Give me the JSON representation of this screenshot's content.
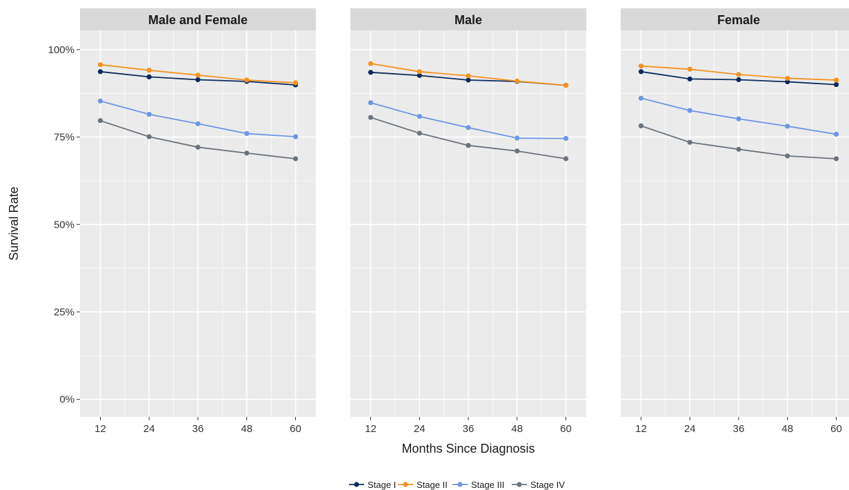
{
  "chart_data": {
    "type": "line",
    "facet_layout": "3 panels in one row",
    "x": [
      12,
      24,
      36,
      48,
      60
    ],
    "xlabel": "Months Since Diagnosis",
    "ylabel": "Survival Rate",
    "ylim": [
      0,
      1.05
    ],
    "y_ticks": [
      0,
      0.25,
      0.5,
      0.75,
      1.0
    ],
    "y_tick_labels": [
      "0%",
      "25%",
      "50%",
      "75%",
      "100%"
    ],
    "grid": true,
    "legend_position": "bottom",
    "series_colors": {
      "Stage I": "#0b2a5b",
      "Stage II": "#f39320",
      "Stage III": "#6e95e6",
      "Stage IV": "#6b737c"
    },
    "legend": [
      "Stage I",
      "Stage II",
      "Stage III",
      "Stage IV"
    ],
    "panels": [
      {
        "title": "Male and Female",
        "series": [
          {
            "name": "Stage I",
            "values": [
              0.937,
              0.922,
              0.914,
              0.909,
              0.899
            ]
          },
          {
            "name": "Stage II",
            "values": [
              0.957,
              0.941,
              0.927,
              0.913,
              0.905
            ]
          },
          {
            "name": "Stage III",
            "values": [
              0.853,
              0.815,
              0.788,
              0.76,
              0.751
            ]
          },
          {
            "name": "Stage IV",
            "values": [
              0.797,
              0.751,
              0.721,
              0.704,
              0.688
            ]
          }
        ]
      },
      {
        "title": "Male",
        "series": [
          {
            "name": "Stage I",
            "values": [
              0.935,
              0.926,
              0.913,
              0.909,
              0.898
            ]
          },
          {
            "name": "Stage II",
            "values": [
              0.96,
              0.937,
              0.925,
              0.91,
              0.898
            ]
          },
          {
            "name": "Stage III",
            "values": [
              0.848,
              0.809,
              0.777,
              0.747,
              0.746
            ]
          },
          {
            "name": "Stage IV",
            "values": [
              0.806,
              0.761,
              0.726,
              0.71,
              0.688
            ]
          }
        ]
      },
      {
        "title": "Female",
        "series": [
          {
            "name": "Stage I",
            "values": [
              0.937,
              0.916,
              0.914,
              0.908,
              0.9
            ]
          },
          {
            "name": "Stage II",
            "values": [
              0.953,
              0.944,
              0.929,
              0.918,
              0.913
            ]
          },
          {
            "name": "Stage III",
            "values": [
              0.861,
              0.826,
              0.802,
              0.781,
              0.758
            ]
          },
          {
            "name": "Stage IV",
            "values": [
              0.782,
              0.735,
              0.715,
              0.696,
              0.688
            ]
          }
        ]
      }
    ]
  }
}
